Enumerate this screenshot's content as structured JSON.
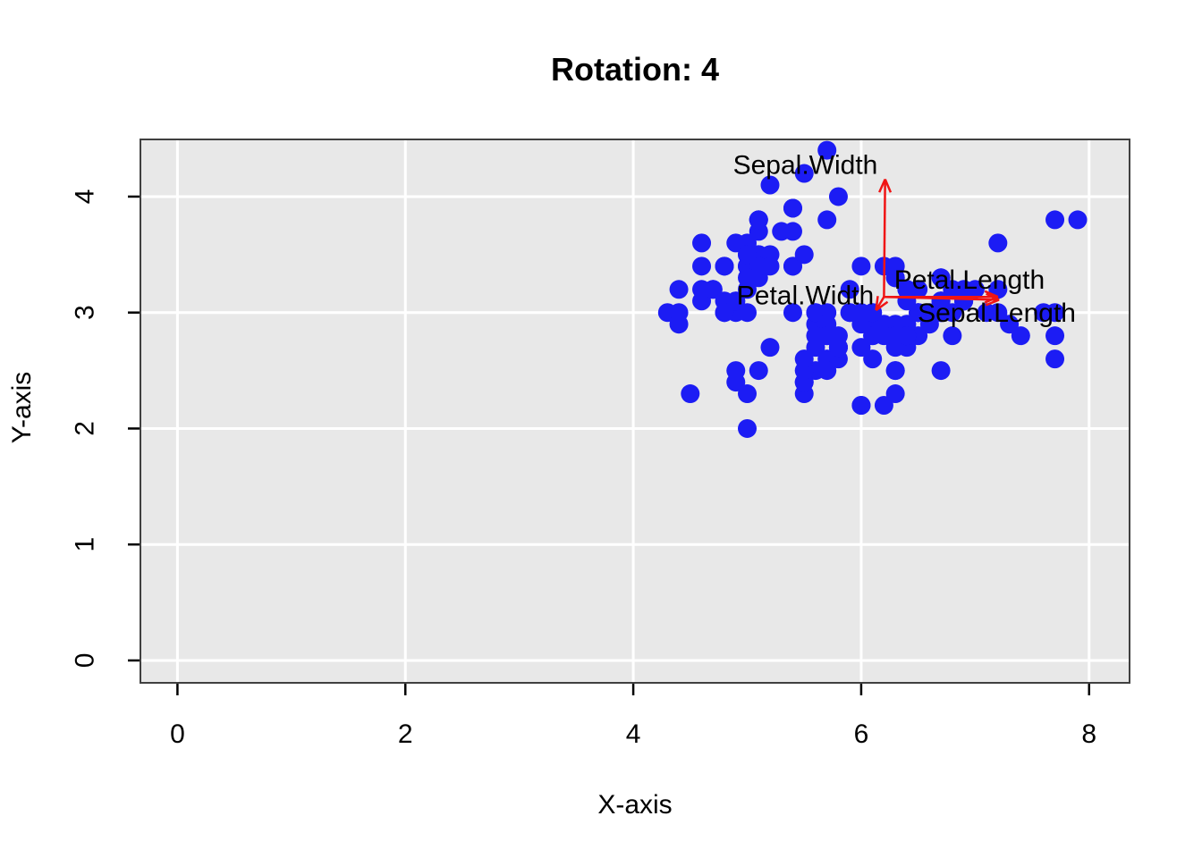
{
  "chart_data": {
    "type": "scatter",
    "title": "Rotation: 4",
    "xlabel": "X-axis",
    "ylabel": "Y-axis",
    "xlim": [
      -0.325,
      8.355
    ],
    "ylim": [
      -0.193,
      4.493
    ],
    "xticks": [
      0,
      2,
      4,
      6,
      8
    ],
    "yticks": [
      0,
      1,
      2,
      3,
      4
    ],
    "grid": true,
    "legend": "none",
    "panel_bg": "#E8E8E8",
    "grid_color": "#FFFFFF",
    "frame_color": "#404040",
    "tick_color": "#000000",
    "text_color": "#000000",
    "point_color": "#1C1CF4",
    "arrow_color": "#F01414",
    "points": [
      [
        5.1,
        3.5
      ],
      [
        4.9,
        3.0
      ],
      [
        4.7,
        3.2
      ],
      [
        4.6,
        3.1
      ],
      [
        5.0,
        3.6
      ],
      [
        5.4,
        3.9
      ],
      [
        4.6,
        3.4
      ],
      [
        5.0,
        3.4
      ],
      [
        4.4,
        2.9
      ],
      [
        4.9,
        3.1
      ],
      [
        5.4,
        3.7
      ],
      [
        4.8,
        3.4
      ],
      [
        4.8,
        3.0
      ],
      [
        4.3,
        3.0
      ],
      [
        5.8,
        4.0
      ],
      [
        5.7,
        4.4
      ],
      [
        5.4,
        3.9
      ],
      [
        5.1,
        3.5
      ],
      [
        5.7,
        3.8
      ],
      [
        5.1,
        3.8
      ],
      [
        5.4,
        3.4
      ],
      [
        5.1,
        3.7
      ],
      [
        4.6,
        3.6
      ],
      [
        5.1,
        3.3
      ],
      [
        4.8,
        3.4
      ],
      [
        5.0,
        3.0
      ],
      [
        5.0,
        3.4
      ],
      [
        5.2,
        3.5
      ],
      [
        5.2,
        3.4
      ],
      [
        4.7,
        3.2
      ],
      [
        4.8,
        3.1
      ],
      [
        5.4,
        3.4
      ],
      [
        5.2,
        4.1
      ],
      [
        5.5,
        4.2
      ],
      [
        4.9,
        3.1
      ],
      [
        5.0,
        3.2
      ],
      [
        5.5,
        3.5
      ],
      [
        4.9,
        3.6
      ],
      [
        4.4,
        3.0
      ],
      [
        5.1,
        3.4
      ],
      [
        5.0,
        3.5
      ],
      [
        4.5,
        2.3
      ],
      [
        4.4,
        3.2
      ],
      [
        5.0,
        3.5
      ],
      [
        5.1,
        3.8
      ],
      [
        4.8,
        3.0
      ],
      [
        5.1,
        3.8
      ],
      [
        4.6,
        3.2
      ],
      [
        5.3,
        3.7
      ],
      [
        5.0,
        3.3
      ],
      [
        7.0,
        3.2
      ],
      [
        6.4,
        3.2
      ],
      [
        6.9,
        3.1
      ],
      [
        5.5,
        2.3
      ],
      [
        6.5,
        2.8
      ],
      [
        5.7,
        2.8
      ],
      [
        6.3,
        3.3
      ],
      [
        4.9,
        2.4
      ],
      [
        6.6,
        2.9
      ],
      [
        5.2,
        2.7
      ],
      [
        5.0,
        2.0
      ],
      [
        5.9,
        3.0
      ],
      [
        6.0,
        2.2
      ],
      [
        6.1,
        2.9
      ],
      [
        5.6,
        2.9
      ],
      [
        6.7,
        3.1
      ],
      [
        5.6,
        3.0
      ],
      [
        5.8,
        2.7
      ],
      [
        6.2,
        2.2
      ],
      [
        5.6,
        2.5
      ],
      [
        5.9,
        3.2
      ],
      [
        6.1,
        2.8
      ],
      [
        6.3,
        2.5
      ],
      [
        6.1,
        2.8
      ],
      [
        6.4,
        2.9
      ],
      [
        6.6,
        3.0
      ],
      [
        6.8,
        2.8
      ],
      [
        6.7,
        3.0
      ],
      [
        6.0,
        2.9
      ],
      [
        5.7,
        2.6
      ],
      [
        5.5,
        2.4
      ],
      [
        5.5,
        2.4
      ],
      [
        5.8,
        2.7
      ],
      [
        6.0,
        2.7
      ],
      [
        5.4,
        3.0
      ],
      [
        6.0,
        3.4
      ],
      [
        6.7,
        3.1
      ],
      [
        6.3,
        2.3
      ],
      [
        5.6,
        3.0
      ],
      [
        5.5,
        2.5
      ],
      [
        5.5,
        2.6
      ],
      [
        6.1,
        3.0
      ],
      [
        5.8,
        2.6
      ],
      [
        5.0,
        2.3
      ],
      [
        5.6,
        2.7
      ],
      [
        5.7,
        3.0
      ],
      [
        5.7,
        2.9
      ],
      [
        6.2,
        2.9
      ],
      [
        5.1,
        2.5
      ],
      [
        5.7,
        2.8
      ],
      [
        6.3,
        3.3
      ],
      [
        5.8,
        2.7
      ],
      [
        7.1,
        3.0
      ],
      [
        6.3,
        2.9
      ],
      [
        6.5,
        3.0
      ],
      [
        7.6,
        3.0
      ],
      [
        4.9,
        2.5
      ],
      [
        7.3,
        2.9
      ],
      [
        6.7,
        2.5
      ],
      [
        7.2,
        3.6
      ],
      [
        6.5,
        3.2
      ],
      [
        6.4,
        2.7
      ],
      [
        6.8,
        3.0
      ],
      [
        5.7,
        2.5
      ],
      [
        5.8,
        2.8
      ],
      [
        6.4,
        3.2
      ],
      [
        6.5,
        3.0
      ],
      [
        7.7,
        3.8
      ],
      [
        7.7,
        2.6
      ],
      [
        6.0,
        2.2
      ],
      [
        6.9,
        3.2
      ],
      [
        5.6,
        2.8
      ],
      [
        7.7,
        2.8
      ],
      [
        6.3,
        2.7
      ],
      [
        6.7,
        3.3
      ],
      [
        7.2,
        3.2
      ],
      [
        6.2,
        2.8
      ],
      [
        6.1,
        3.0
      ],
      [
        6.4,
        2.8
      ],
      [
        7.2,
        3.0
      ],
      [
        7.4,
        2.8
      ],
      [
        7.9,
        3.8
      ],
      [
        6.4,
        2.8
      ],
      [
        6.3,
        2.8
      ],
      [
        6.1,
        2.6
      ],
      [
        7.7,
        3.0
      ],
      [
        6.3,
        3.4
      ],
      [
        6.4,
        3.1
      ],
      [
        6.0,
        3.0
      ],
      [
        6.9,
        3.1
      ],
      [
        6.7,
        3.1
      ],
      [
        6.9,
        3.1
      ],
      [
        5.8,
        2.7
      ],
      [
        6.8,
        3.2
      ],
      [
        6.7,
        3.3
      ],
      [
        6.7,
        3.0
      ],
      [
        6.3,
        2.5
      ],
      [
        6.5,
        3.0
      ],
      [
        6.2,
        3.4
      ],
      [
        5.9,
        3.0
      ]
    ],
    "arrows": [
      {
        "name": "Sepal.Width",
        "from": [
          6.2,
          3.135
        ],
        "to": [
          6.21,
          4.15
        ],
        "label_at": [
          5.51,
          4.27
        ]
      },
      {
        "name": "Petal.Length",
        "from": [
          6.2,
          3.135
        ],
        "to": [
          7.2,
          3.135
        ],
        "label_at": [
          6.95,
          3.28
        ]
      },
      {
        "name": "Sepal.Length",
        "from": [
          6.2,
          3.135
        ],
        "to": [
          7.21,
          3.11
        ],
        "label_at": [
          7.19,
          2.995
        ]
      },
      {
        "name": "Petal.Width",
        "from": [
          6.2,
          3.135
        ],
        "to": [
          6.13,
          3.02
        ],
        "label_at": [
          5.51,
          3.145
        ]
      }
    ]
  }
}
